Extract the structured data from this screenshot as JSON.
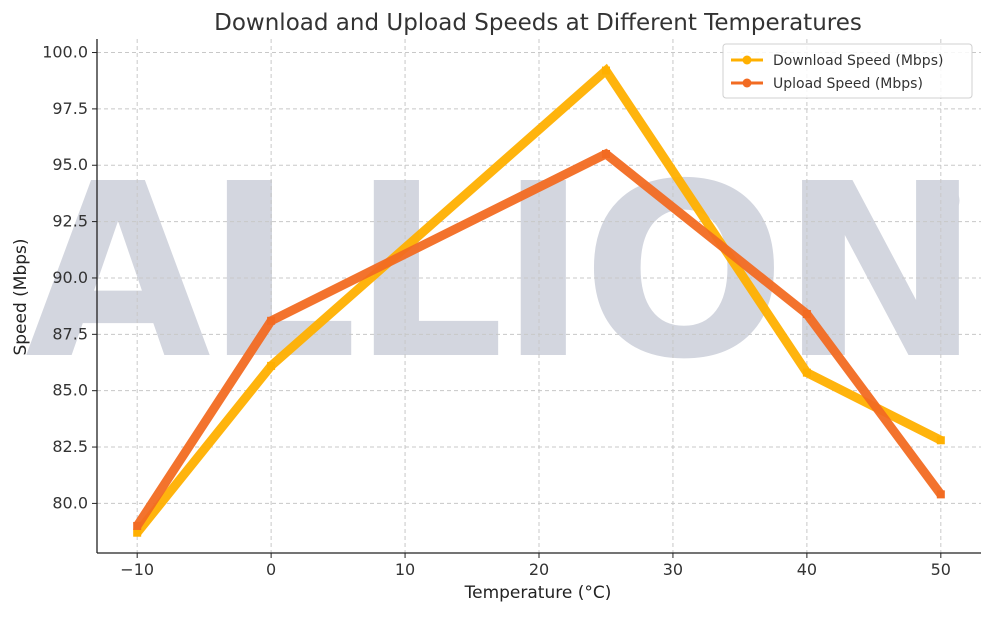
{
  "chart_data": {
    "type": "line",
    "title": "Download and Upload Speeds at Different Temperatures",
    "xlabel": "Temperature (°C)",
    "ylabel": "Speed (Mbps)",
    "x": [
      -10,
      0,
      25,
      40,
      50
    ],
    "series": [
      {
        "name": "Download Speed (Mbps)",
        "values": [
          78.7,
          86.1,
          99.2,
          85.8,
          82.8
        ],
        "color": "#ffb000"
      },
      {
        "name": "Upload Speed (Mbps)",
        "values": [
          79.0,
          88.1,
          95.5,
          88.4,
          80.4
        ],
        "color": "#f26b22"
      }
    ],
    "xlim": [
      -13,
      53
    ],
    "ylim": [
      77.8,
      100.6
    ],
    "xticks": [
      -10,
      0,
      10,
      20,
      30,
      40,
      50
    ],
    "xtick_labels": [
      "−10",
      "0",
      "10",
      "20",
      "30",
      "40",
      "50"
    ],
    "yticks": [
      80.0,
      82.5,
      85.0,
      87.5,
      90.0,
      92.5,
      95.0,
      97.5,
      100.0
    ],
    "ytick_labels": [
      "80.0",
      "82.5",
      "85.0",
      "87.5",
      "90.0",
      "92.5",
      "95.0",
      "97.5",
      "100.0"
    ],
    "grid": true,
    "legend_position": "top-right",
    "watermark": {
      "text": "ALLION",
      "mark": "®",
      "color": "#d3d6df"
    }
  }
}
